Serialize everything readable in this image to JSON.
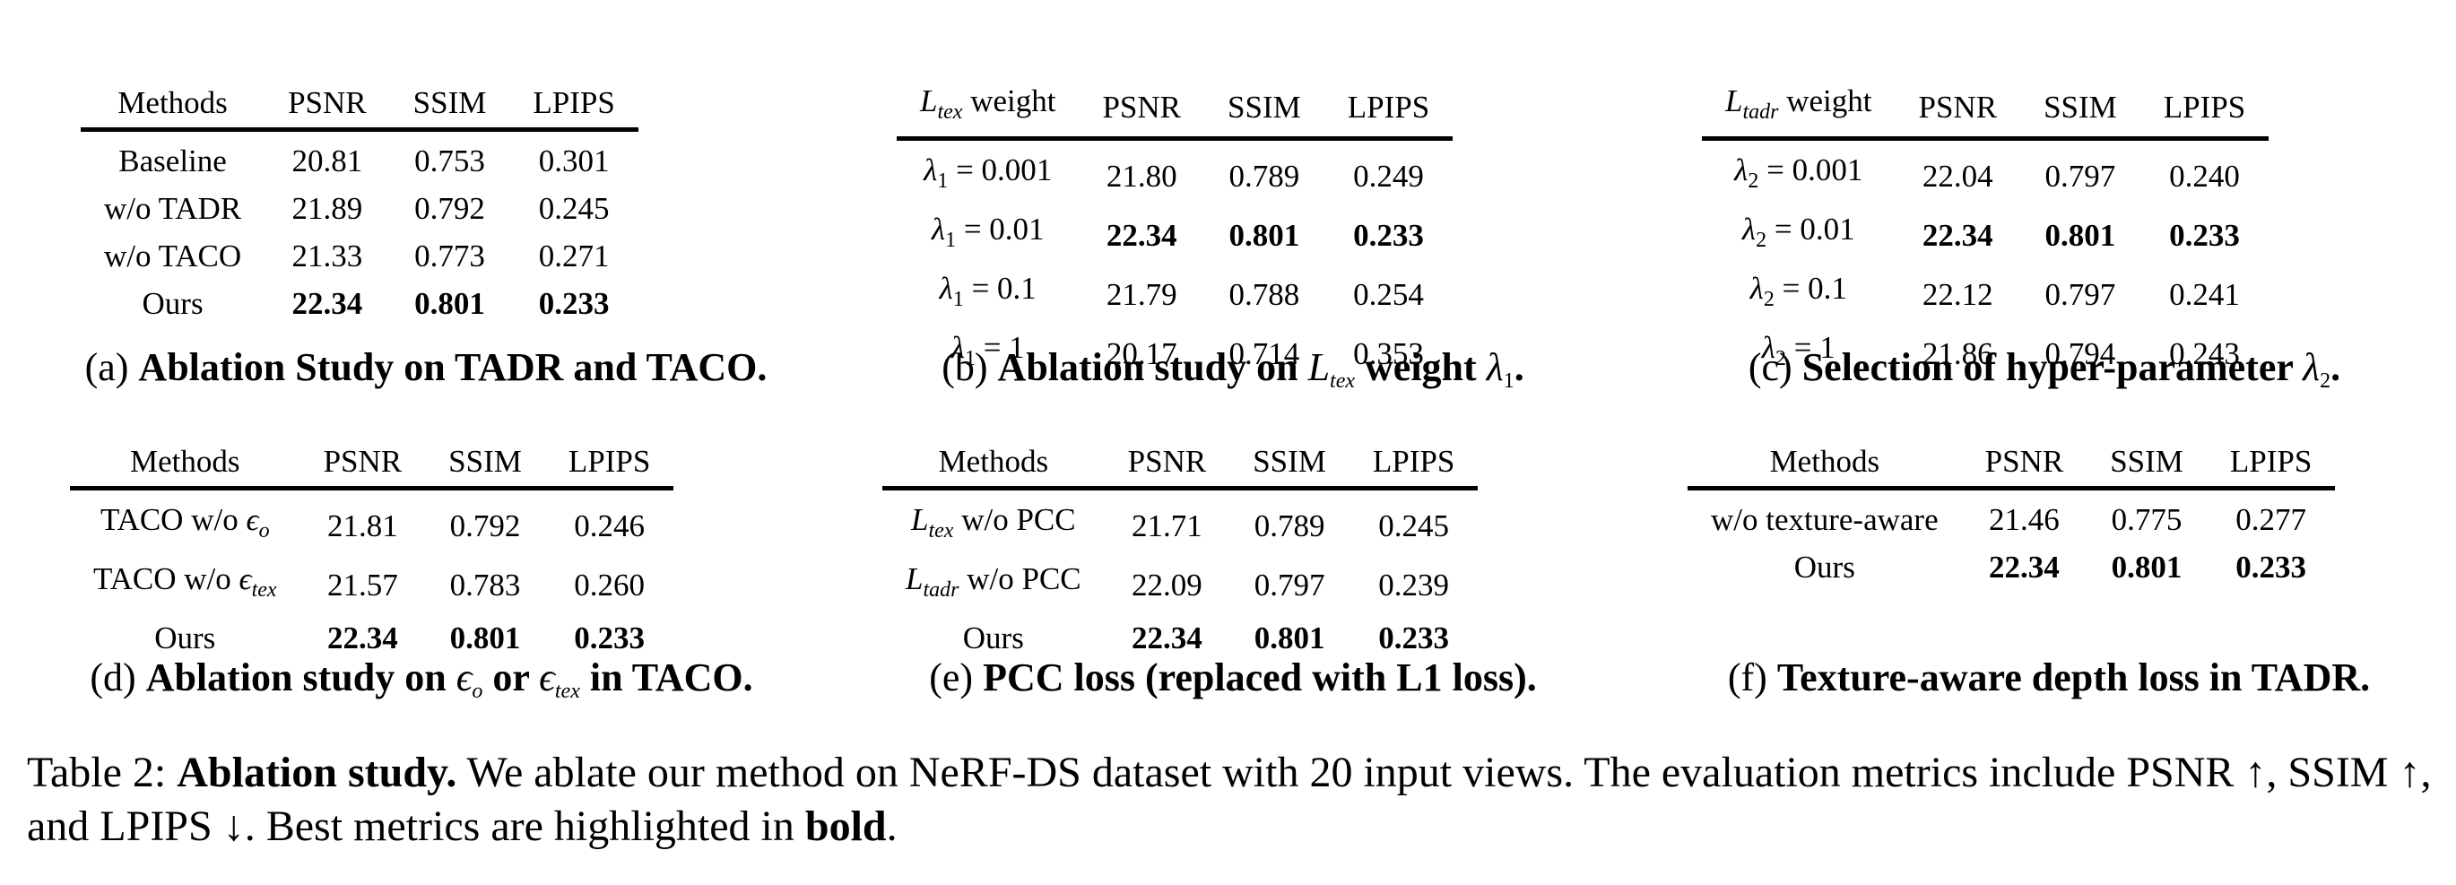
{
  "panels": {
    "a": {
      "headers": [
        "Methods",
        "PSNR",
        "SSIM",
        "LPIPS"
      ],
      "rows": [
        {
          "label": "Baseline",
          "psnr": "20.81",
          "ssim": "0.753",
          "lpips": "0.301"
        },
        {
          "label": "w/o TADR",
          "psnr": "21.89",
          "ssim": "0.792",
          "lpips": "0.245"
        },
        {
          "label": "w/o TACO",
          "psnr": "21.33",
          "ssim": "0.773",
          "lpips": "0.271"
        },
        {
          "label": "Ours",
          "psnr": "22.34",
          "ssim": "0.801",
          "lpips": "0.233"
        }
      ],
      "caption_tag": "(a)",
      "caption_text": "Ablation Study on TADR and TACO."
    },
    "b": {
      "header_var": "L",
      "header_sub": "tex",
      "header_rest": "weight",
      "headers": [
        "PSNR",
        "SSIM",
        "LPIPS"
      ],
      "rows": [
        {
          "var": "λ",
          "sub": "1",
          "value": "= 0.001",
          "psnr": "21.80",
          "ssim": "0.789",
          "lpips": "0.249"
        },
        {
          "var": "λ",
          "sub": "1",
          "value": "= 0.01",
          "psnr": "22.34",
          "ssim": "0.801",
          "lpips": "0.233"
        },
        {
          "var": "λ",
          "sub": "1",
          "value": "= 0.1",
          "psnr": "21.79",
          "ssim": "0.788",
          "lpips": "0.254"
        },
        {
          "var": "λ",
          "sub": "1",
          "value": "= 1",
          "psnr": "20.17",
          "ssim": "0.714",
          "lpips": "0.353"
        }
      ],
      "caption_tag": "(b)",
      "caption_pre": "Ablation study on",
      "caption_var": "L",
      "caption_sub": "tex",
      "caption_mid": "weight",
      "caption_var2": "λ",
      "caption_sub2": "1",
      "caption_end": "."
    },
    "c": {
      "header_var": "L",
      "header_sub": "tadr",
      "header_rest": "weight",
      "headers": [
        "PSNR",
        "SSIM",
        "LPIPS"
      ],
      "rows": [
        {
          "var": "λ",
          "sub": "2",
          "value": "= 0.001",
          "psnr": "22.04",
          "ssim": "0.797",
          "lpips": "0.240"
        },
        {
          "var": "λ",
          "sub": "2",
          "value": "= 0.01",
          "psnr": "22.34",
          "ssim": "0.801",
          "lpips": "0.233"
        },
        {
          "var": "λ",
          "sub": "2",
          "value": "= 0.1",
          "psnr": "22.12",
          "ssim": "0.797",
          "lpips": "0.241"
        },
        {
          "var": "λ",
          "sub": "2",
          "value": "= 1",
          "psnr": "21.86",
          "ssim": "0.794",
          "lpips": "0.243"
        }
      ],
      "caption_tag": "(c)",
      "caption_pre": "Selection of hyper-parameter",
      "caption_var": "λ",
      "caption_sub": "2",
      "caption_end": "."
    },
    "d": {
      "headers": [
        "Methods",
        "PSNR",
        "SSIM",
        "LPIPS"
      ],
      "rows": [
        {
          "label": "TACO w/o",
          "var": "ϵ",
          "sub": "o",
          "psnr": "21.81",
          "ssim": "0.792",
          "lpips": "0.246"
        },
        {
          "label": "TACO w/o",
          "var": "ϵ",
          "sub": "tex",
          "psnr": "21.57",
          "ssim": "0.783",
          "lpips": "0.260"
        },
        {
          "label": "Ours",
          "psnr": "22.34",
          "ssim": "0.801",
          "lpips": "0.233"
        }
      ],
      "caption_tag": "(d)",
      "caption_pre": "Ablation study on",
      "caption_var": "ϵ",
      "caption_sub": "o",
      "caption_mid": "or",
      "caption_var2": "ϵ",
      "caption_sub2": "tex",
      "caption_end": "in TACO."
    },
    "e": {
      "headers": [
        "Methods",
        "PSNR",
        "SSIM",
        "LPIPS"
      ],
      "rows": [
        {
          "var": "L",
          "sub": "tex",
          "label": "w/o PCC",
          "psnr": "21.71",
          "ssim": "0.789",
          "lpips": "0.245"
        },
        {
          "var": "L",
          "sub": "tadr",
          "label": "w/o PCC",
          "psnr": "22.09",
          "ssim": "0.797",
          "lpips": "0.239"
        },
        {
          "label": "Ours",
          "psnr": "22.34",
          "ssim": "0.801",
          "lpips": "0.233"
        }
      ],
      "caption_tag": "(e)",
      "caption_text": "PCC loss (replaced with L1 loss)."
    },
    "f": {
      "headers": [
        "Methods",
        "PSNR",
        "SSIM",
        "LPIPS"
      ],
      "rows": [
        {
          "label": "w/o texture-aware",
          "psnr": "21.46",
          "ssim": "0.775",
          "lpips": "0.277"
        },
        {
          "label": "Ours",
          "psnr": "22.34",
          "ssim": "0.801",
          "lpips": "0.233"
        }
      ],
      "caption_tag": "(f)",
      "caption_text": "Texture-aware depth loss in TADR."
    }
  },
  "main_caption": {
    "label": "Table 2:",
    "title": "Ablation study.",
    "body": "We ablate our method on NeRF-DS dataset with 20 input views. The evaluation metrics include PSNR ↑, SSIM ↑, and LPIPS ↓. Best metrics are highlighted in",
    "bold_word": "bold",
    "end": "."
  }
}
